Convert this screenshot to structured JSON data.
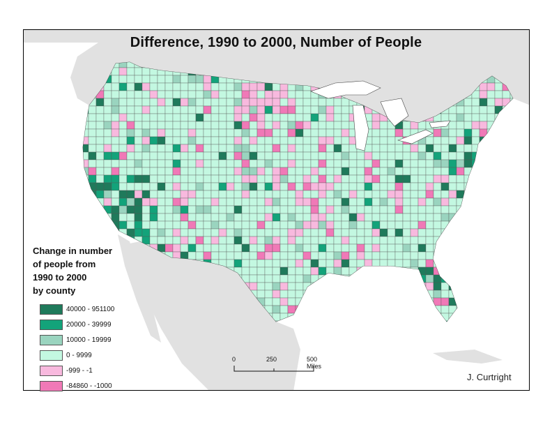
{
  "title": "Difference, 1990 to 2000, Number of People",
  "legend": {
    "title_lines": [
      "Change in number",
      "of people from",
      "1990 to 2000",
      "by county"
    ],
    "classes": [
      {
        "label": "40000 - 951100",
        "color": "#1f7a5b"
      },
      {
        "label": "20000 - 39999",
        "color": "#13a37a"
      },
      {
        "label": "10000 - 19999",
        "color": "#9ad4bf"
      },
      {
        "label": "0 - 9999",
        "color": "#c3f8e1"
      },
      {
        "label": "-999 - -1",
        "color": "#f8b9de"
      },
      {
        "label": "-84860 - -1000",
        "color": "#f079b7"
      }
    ]
  },
  "scale": {
    "ticks": [
      "0",
      "250",
      "500 Miles"
    ]
  },
  "credit": "J. Curtright",
  "colors": {
    "water": "#ffffff",
    "land_outside": "#e1e1e1",
    "county_border": "#555555"
  }
}
